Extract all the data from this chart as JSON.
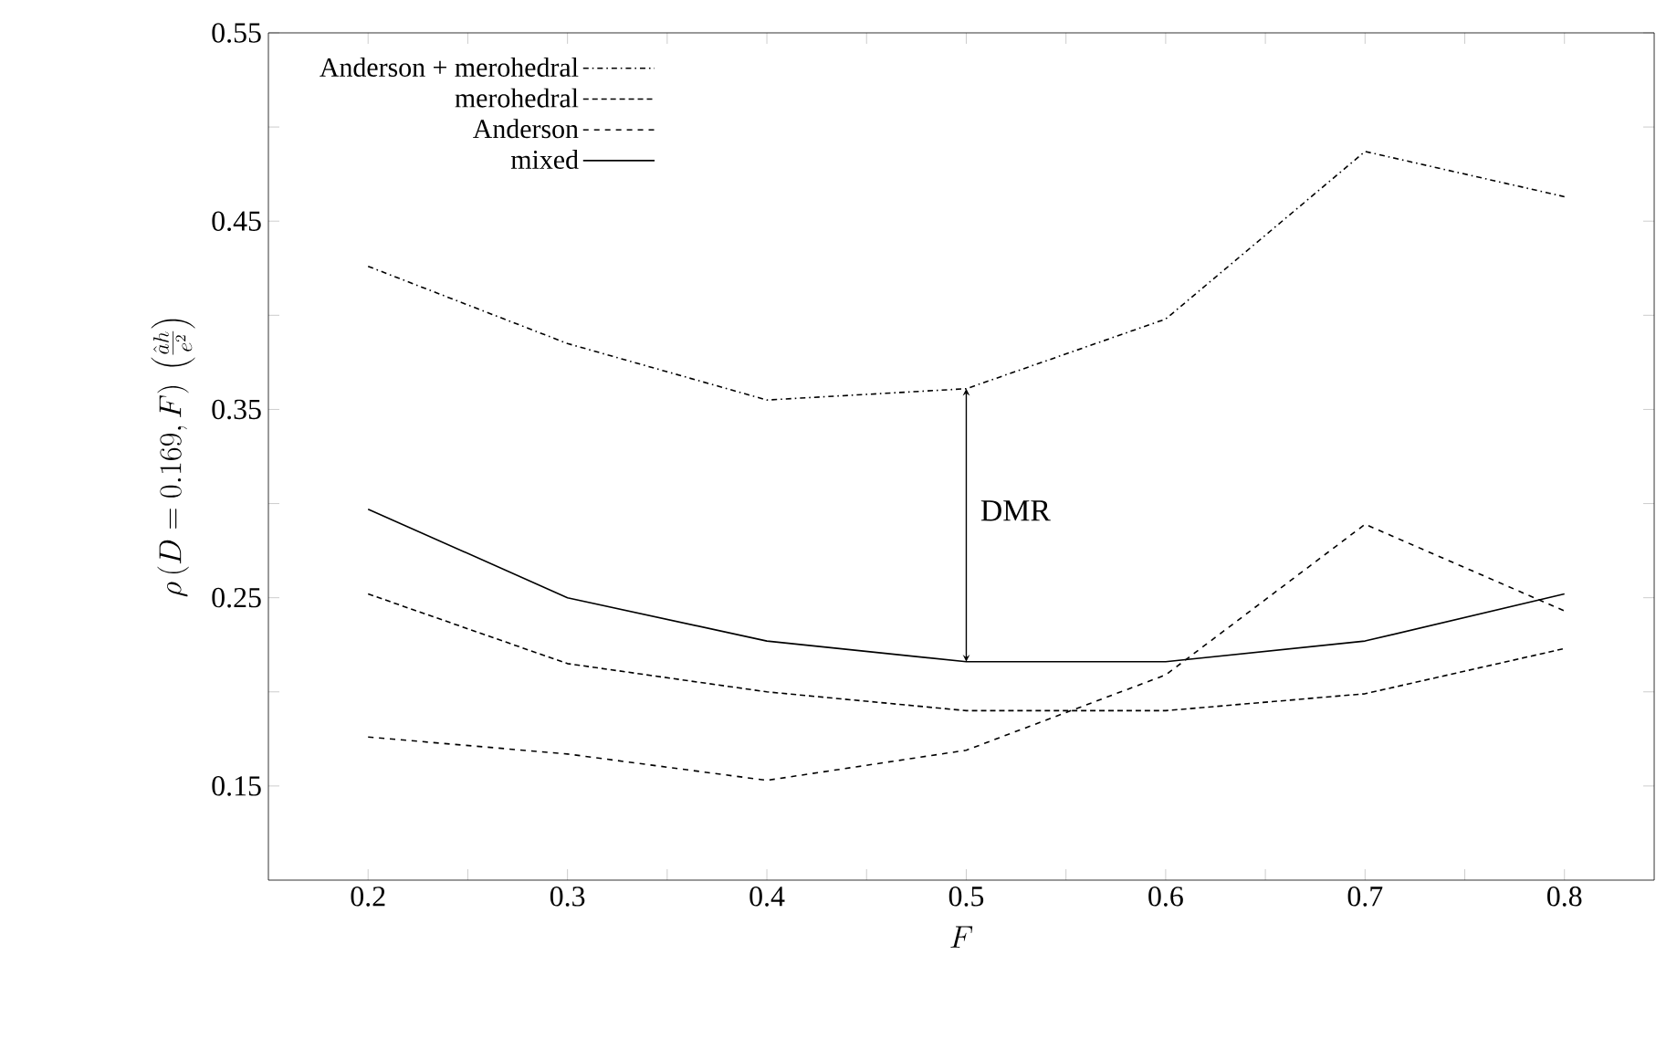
{
  "chart_data": {
    "type": "line",
    "xlabel": "F",
    "ylabel": "\\rho\\,(D=0.169,F)\\ \\left(\\frac{\\hat{a}h}{e^{2}}\\right)",
    "x": [
      0.2,
      0.3,
      0.4,
      0.5,
      0.6,
      0.7,
      0.8
    ],
    "series": [
      {
        "name": "Anderson + merohedral",
        "color": "#000000",
        "line_style": "dashdot",
        "values": [
          0.426,
          0.385,
          0.355,
          0.361,
          0.398,
          0.487,
          0.463
        ]
      },
      {
        "name": "merohedral",
        "color": "#000000",
        "line_style": "dotted",
        "values": [
          0.252,
          0.215,
          0.2,
          0.19,
          0.19,
          0.199,
          0.223
        ]
      },
      {
        "name": "Anderson",
        "color": "#000000",
        "line_style": "dashed",
        "values": [
          0.176,
          0.167,
          0.153,
          0.169,
          0.209,
          0.289,
          0.243
        ]
      },
      {
        "name": "mixed",
        "color": "#000000",
        "line_style": "solid",
        "values": [
          0.297,
          0.25,
          0.227,
          0.216,
          0.216,
          0.227,
          0.252
        ]
      }
    ],
    "annotations": [
      "DMR"
    ],
    "xlim": [
      0.15,
      0.845
    ],
    "ylim": [
      0.1,
      0.55
    ],
    "xticks": [
      0.2,
      {
        "value": 0.25,
        "label": null
      },
      0.3,
      {
        "value": 0.35,
        "label": null
      },
      0.4,
      {
        "value": 0.45,
        "label": null
      },
      0.5,
      {
        "value": 0.55,
        "label": null
      },
      0.6,
      {
        "value": 0.65,
        "label": null
      },
      0.7,
      {
        "value": 0.75,
        "label": null
      },
      0.8
    ],
    "yticks": [
      0.15,
      {
        "value": 0.2,
        "label": null
      },
      0.25,
      {
        "value": 0.3,
        "label": null
      },
      0.35,
      {
        "value": 0.4,
        "label": null
      },
      0.45,
      {
        "value": 0.5,
        "label": null
      },
      0.55
    ],
    "legend": "top left",
    "grid": false
  }
}
